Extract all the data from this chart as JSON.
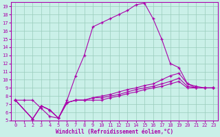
{
  "xlabel": "Windchill (Refroidissement éolien,°C)",
  "ylabel": "",
  "bg_color": "#caf0e8",
  "line_color": "#aa00aa",
  "grid_color": "#99ccbb",
  "xlim": [
    -0.5,
    23.5
  ],
  "ylim": [
    5,
    19.5
  ],
  "xticks": [
    0,
    1,
    2,
    3,
    4,
    5,
    6,
    7,
    8,
    9,
    10,
    11,
    12,
    13,
    14,
    15,
    16,
    17,
    18,
    19,
    20,
    21,
    22,
    23
  ],
  "yticks": [
    5,
    6,
    7,
    8,
    9,
    10,
    11,
    12,
    13,
    14,
    15,
    16,
    17,
    18,
    19
  ],
  "lines": [
    {
      "x": [
        0,
        1,
        2,
        3,
        4,
        5,
        6,
        7,
        8,
        9,
        10,
        11,
        12,
        13,
        14,
        15,
        16,
        17,
        18,
        19,
        20,
        21,
        22,
        23
      ],
      "y": [
        7.5,
        7.5,
        7.5,
        6.5,
        5.5,
        5.3,
        7.5,
        10.5,
        13.0,
        16.5,
        17.0,
        17.5,
        18.0,
        18.5,
        19.2,
        19.4,
        17.5,
        15.0,
        12.0,
        11.5,
        9.5,
        9.0,
        9.0,
        9.0
      ]
    },
    {
      "x": [
        0,
        2,
        3,
        4,
        5,
        6,
        7,
        8,
        9,
        10,
        11,
        12,
        13,
        14,
        15,
        16,
        17,
        18,
        19,
        20,
        21,
        22,
        23
      ],
      "y": [
        7.5,
        5.2,
        6.8,
        6.3,
        5.3,
        7.2,
        7.5,
        7.5,
        7.8,
        8.0,
        8.2,
        8.5,
        8.8,
        9.0,
        9.3,
        9.5,
        10.0,
        10.5,
        10.8,
        9.5,
        9.2,
        9.0,
        9.0
      ]
    },
    {
      "x": [
        0,
        2,
        3,
        4,
        5,
        6,
        7,
        8,
        9,
        10,
        11,
        12,
        13,
        14,
        15,
        16,
        17,
        18,
        19,
        20,
        21,
        22,
        23
      ],
      "y": [
        7.5,
        5.2,
        6.8,
        6.3,
        5.3,
        7.2,
        7.5,
        7.5,
        7.8,
        7.8,
        8.0,
        8.2,
        8.5,
        8.8,
        9.0,
        9.2,
        9.5,
        9.8,
        10.2,
        9.2,
        9.0,
        9.0,
        9.0
      ]
    },
    {
      "x": [
        0,
        2,
        3,
        4,
        5,
        6,
        7,
        8,
        9,
        10,
        11,
        12,
        13,
        14,
        15,
        16,
        17,
        18,
        19,
        20,
        21,
        22,
        23
      ],
      "y": [
        7.5,
        5.2,
        6.8,
        6.3,
        5.3,
        7.2,
        7.5,
        7.5,
        7.5,
        7.5,
        7.8,
        8.0,
        8.3,
        8.5,
        8.8,
        9.0,
        9.2,
        9.5,
        9.8,
        9.0,
        9.0,
        9.0,
        9.0
      ]
    }
  ]
}
